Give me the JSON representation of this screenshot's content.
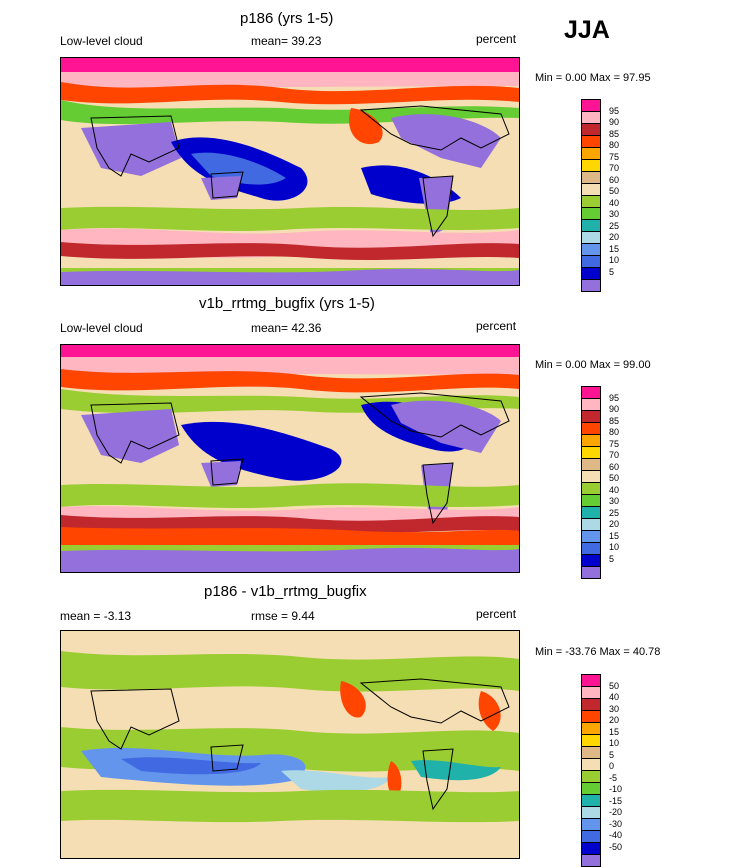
{
  "season": "JJA",
  "panels": [
    {
      "title": "p186 (yrs 1-5)",
      "left_label": "Low-level cloud",
      "center_label": "mean=  39.23",
      "right_label": "percent",
      "minmax": "Min =   0.00 Max =  97.95",
      "colorbar": {
        "labels": [
          "95",
          "90",
          "85",
          "80",
          "75",
          "70",
          "60",
          "50",
          "40",
          "30",
          "25",
          "20",
          "15",
          "10",
          "5"
        ],
        "colors": [
          "#ff1493",
          "#ffb6c1",
          "#c0282d",
          "#ff4500",
          "#ffa500",
          "#ffd700",
          "#deb887",
          "#f5deb3",
          "#9acd32",
          "#66cc33",
          "#20b2aa",
          "#add8e6",
          "#6495ed",
          "#4169e1",
          "#0000cd",
          "#9370db"
        ]
      }
    },
    {
      "title": "v1b_rrtmg_bugfix (yrs 1-5)",
      "left_label": "Low-level cloud",
      "center_label": "mean=  42.36",
      "right_label": "percent",
      "minmax": "Min =   0.00 Max =  99.00",
      "colorbar": {
        "labels": [
          "95",
          "90",
          "85",
          "80",
          "75",
          "70",
          "60",
          "50",
          "40",
          "30",
          "25",
          "20",
          "15",
          "10",
          "5"
        ],
        "colors": [
          "#ff1493",
          "#ffb6c1",
          "#c0282d",
          "#ff4500",
          "#ffa500",
          "#ffd700",
          "#deb887",
          "#f5deb3",
          "#9acd32",
          "#66cc33",
          "#20b2aa",
          "#add8e6",
          "#6495ed",
          "#4169e1",
          "#0000cd",
          "#9370db"
        ]
      }
    },
    {
      "title": "p186 - v1b_rrtmg_bugfix",
      "left_label": "mean =  -3.13",
      "center_label": "rmse =   9.44",
      "right_label": "percent",
      "minmax": "Min = -33.76 Max =  40.78",
      "colorbar": {
        "labels": [
          "50",
          "40",
          "30",
          "20",
          "15",
          "10",
          "5",
          "0",
          "-5",
          "-10",
          "-15",
          "-20",
          "-30",
          "-40",
          "-50"
        ],
        "colors": [
          "#ff1493",
          "#ffb6c1",
          "#c0282d",
          "#ff4500",
          "#ffa500",
          "#ffd700",
          "#deb887",
          "#f5deb3",
          "#9acd32",
          "#66cc33",
          "#20b2aa",
          "#add8e6",
          "#6495ed",
          "#4169e1",
          "#0000cd",
          "#9370db"
        ]
      }
    }
  ]
}
